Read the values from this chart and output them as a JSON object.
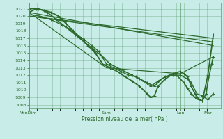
{
  "xlabel": "Pression niveau de la mer( hPa )",
  "bg_color": "#c8ede8",
  "grid_color": "#5a9a6a",
  "line_color": "#2d6a2d",
  "ylim": [
    1007.5,
    1021.8
  ],
  "yticks": [
    1008,
    1009,
    1010,
    1011,
    1012,
    1013,
    1014,
    1015,
    1016,
    1017,
    1018,
    1019,
    1020,
    1021
  ],
  "xlim": [
    0,
    1.04
  ],
  "xtick_positions": [
    0.0,
    0.42,
    0.82,
    0.97
  ],
  "xtick_labels": [
    "VenDim",
    "Sam",
    "Lun",
    "Mar"
  ],
  "lines": [
    {
      "x": [
        0.0,
        1.0
      ],
      "y": [
        1020.0,
        1017.0
      ],
      "lw": 0.9,
      "marker": null
    },
    {
      "x": [
        0.0,
        1.0
      ],
      "y": [
        1020.0,
        1016.5
      ],
      "lw": 0.9,
      "marker": null
    },
    {
      "x": [
        0.0,
        1.0
      ],
      "y": [
        1020.5,
        1016.0
      ],
      "lw": 0.9,
      "marker": null
    },
    {
      "x": [
        0.0,
        0.42,
        0.82,
        1.0
      ],
      "y": [
        1020.5,
        1013.0,
        1012.2,
        1014.5
      ],
      "lw": 0.9,
      "marker": null
    },
    {
      "x": [
        0.0,
        0.06,
        0.12,
        0.18,
        0.22,
        0.26,
        0.3,
        0.34,
        0.38,
        0.42,
        0.46,
        0.5,
        0.54,
        0.58,
        0.62,
        0.66,
        0.7,
        0.74,
        0.78,
        0.82,
        0.86,
        0.88,
        0.91,
        0.94,
        0.97,
        1.0
      ],
      "y": [
        1020.2,
        1020.0,
        1019.5,
        1018.8,
        1018.2,
        1017.5,
        1016.8,
        1016.0,
        1015.2,
        1013.5,
        1013.0,
        1012.5,
        1012.0,
        1011.8,
        1011.2,
        1010.5,
        1011.2,
        1011.8,
        1012.0,
        1012.0,
        1011.5,
        1011.0,
        1009.5,
        1009.2,
        1008.7,
        1009.5
      ],
      "lw": 1.0,
      "marker": "+"
    },
    {
      "x": [
        0.0,
        0.05,
        0.1,
        0.15,
        0.2,
        0.25,
        0.3,
        0.35,
        0.4,
        0.44,
        0.48,
        0.52,
        0.56,
        0.6,
        0.64,
        0.68,
        0.72,
        0.76,
        0.8,
        0.84,
        0.86,
        0.88,
        0.9,
        0.92,
        0.94,
        0.96,
        0.97,
        0.99,
        1.0
      ],
      "y": [
        1021.0,
        1021.0,
        1020.5,
        1019.5,
        1018.5,
        1017.5,
        1016.5,
        1015.5,
        1014.5,
        1013.5,
        1013.0,
        1012.5,
        1012.0,
        1011.5,
        1011.0,
        1010.5,
        1011.5,
        1012.0,
        1012.0,
        1011.0,
        1010.2,
        1009.5,
        1009.0,
        1008.7,
        1008.5,
        1009.5,
        1011.0,
        1013.5,
        1014.5
      ],
      "lw": 1.2,
      "marker": "+"
    },
    {
      "x": [
        0.0,
        0.04,
        0.08,
        0.12,
        0.16,
        0.2,
        0.24,
        0.28,
        0.32,
        0.36,
        0.4,
        0.44,
        0.48,
        0.52,
        0.56,
        0.6,
        0.64,
        0.66,
        0.68,
        0.7,
        0.74,
        0.78,
        0.82,
        0.84,
        0.86,
        0.88,
        0.9,
        0.92,
        0.94,
        0.97,
        1.0
      ],
      "y": [
        1020.5,
        1021.0,
        1020.8,
        1020.5,
        1020.0,
        1019.0,
        1018.0,
        1017.0,
        1016.0,
        1015.0,
        1013.5,
        1013.0,
        1012.5,
        1011.8,
        1011.2,
        1010.5,
        1009.5,
        1009.0,
        1009.2,
        1010.5,
        1011.5,
        1012.2,
        1012.5,
        1012.2,
        1011.8,
        1010.5,
        1009.5,
        1008.8,
        1008.5,
        1012.0,
        1017.5
      ],
      "lw": 1.3,
      "marker": "+"
    }
  ],
  "figsize": [
    3.2,
    2.0
  ],
  "dpi": 100
}
